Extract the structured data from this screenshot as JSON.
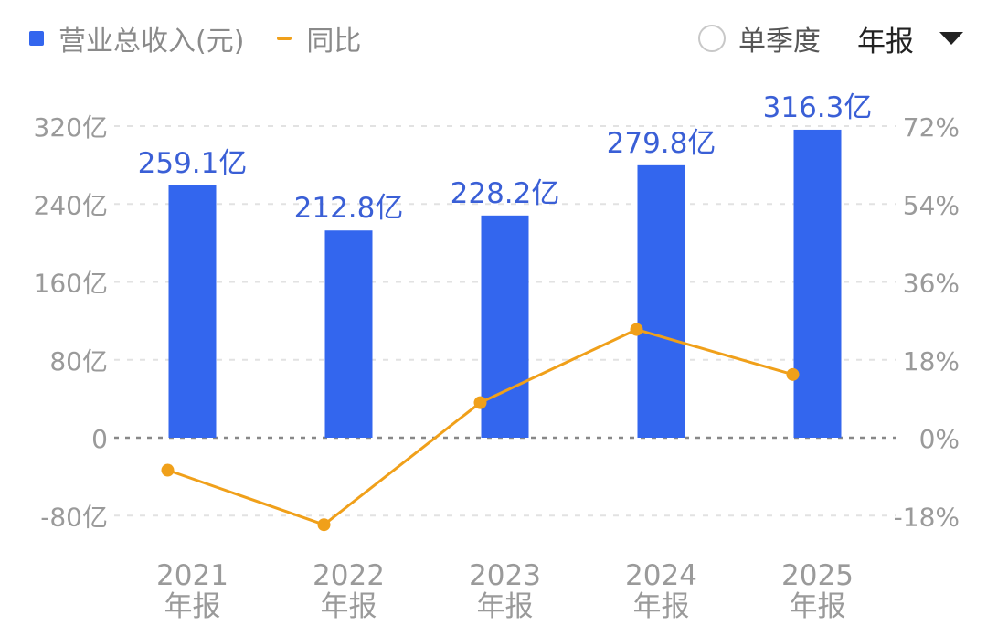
{
  "legend": {
    "bar_label": "营业总收入(元)",
    "line_label": "同比"
  },
  "controls": {
    "quarter_label": "单季度",
    "period_selected": "年报"
  },
  "colors": {
    "bar": "#3366ee",
    "line": "#f0a01a",
    "bar_label": "#3a5fd6",
    "axis_text": "#9a9a9a"
  },
  "chart_data": {
    "type": "bar",
    "categories": [
      "2021\n年报",
      "2022\n年报",
      "2023\n年报",
      "2024\n年报",
      "2025\n年报"
    ],
    "series": [
      {
        "name": "营业总收入(元)",
        "type": "bar",
        "axis": "left",
        "values": [
          259.1,
          212.8,
          228.2,
          279.8,
          316.3
        ],
        "labels": [
          "259.1亿",
          "212.8亿",
          "228.2亿",
          "279.8亿",
          "316.3亿"
        ]
      },
      {
        "name": "同比",
        "type": "line",
        "axis": "right",
        "values": [
          -7.5,
          -20.1,
          8.1,
          25.0,
          14.6
        ]
      }
    ],
    "y_left": {
      "ticks": [
        -80,
        0,
        80,
        160,
        240,
        320
      ],
      "tick_labels": [
        "-80亿",
        "0",
        "80亿",
        "160亿",
        "240亿",
        "320亿"
      ],
      "range": [
        -80,
        320
      ]
    },
    "y_right": {
      "ticks": [
        -18,
        0,
        18,
        36,
        54,
        72
      ],
      "tick_labels": [
        "-18%",
        "0%",
        "18%",
        "36%",
        "54%",
        "72%"
      ],
      "range": [
        -18,
        72
      ]
    },
    "grid": true,
    "legend_position": "top-left"
  }
}
